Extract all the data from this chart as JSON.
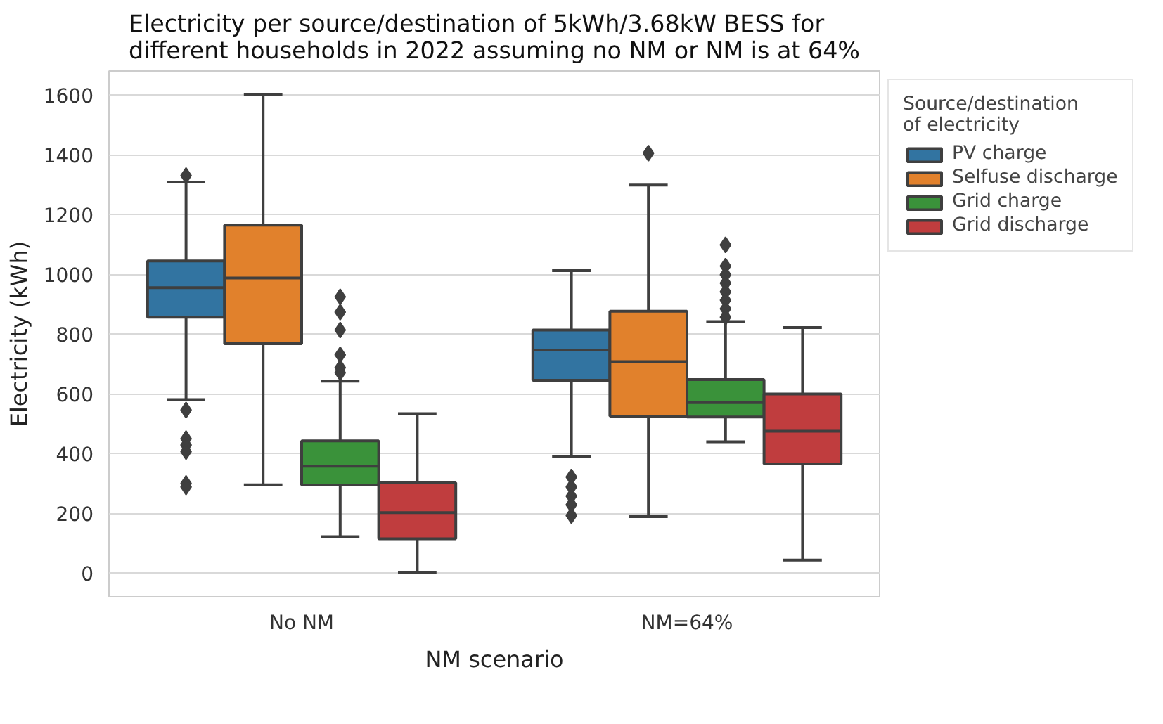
{
  "chart_data": {
    "type": "box",
    "title": "Electricity per source/destination of 5kWh/3.68kW BESS for\ndifferent households in 2022 assuming no NM or NM is at 64%",
    "xlabel": "NM scenario",
    "ylabel": "Electricity (kWh)",
    "legend_title": "Source/destination\nof electricity",
    "categories": [
      "No NM",
      "NM=64%"
    ],
    "ylim": [
      -80,
      1680
    ],
    "yticks": [
      0,
      200,
      400,
      600,
      800,
      1000,
      1200,
      1400,
      1600
    ],
    "grid": "y",
    "legend": "top right",
    "marker": "diamond",
    "series": [
      {
        "name": "PV charge",
        "color": "#3274a1",
        "boxes": [
          {
            "low": 580,
            "q1": 856,
            "median": 955,
            "q3": 1044,
            "high": 1308,
            "outliers": [
              1330,
              545,
              449,
              428,
              406,
              299,
              288
            ]
          },
          {
            "low": 389,
            "q1": 645,
            "median": 746,
            "q3": 813,
            "high": 1012,
            "outliers": [
              321,
              288,
              257,
              228,
              192
            ]
          }
        ]
      },
      {
        "name": "Selfuse discharge",
        "color": "#e1812c",
        "boxes": [
          {
            "low": 295,
            "q1": 767,
            "median": 987,
            "q3": 1164,
            "high": 1600
          },
          {
            "low": 188,
            "q1": 525,
            "median": 707,
            "q3": 876,
            "high": 1298,
            "outliers": [
              1405
            ]
          }
        ]
      },
      {
        "name": "Grid charge",
        "color": "#3a923a",
        "boxes": [
          {
            "low": 121,
            "q1": 294,
            "median": 357,
            "q3": 442,
            "high": 642,
            "outliers": [
              924,
              873,
              813,
              730,
              687,
              670
            ]
          },
          {
            "low": 439,
            "q1": 522,
            "median": 570,
            "q3": 647,
            "high": 841,
            "outliers": [
              1098,
              1027,
              998,
              970,
              941,
              913,
              884,
              856
            ]
          }
        ]
      },
      {
        "name": "Grid discharge",
        "color": "#c03d3e",
        "boxes": [
          {
            "low": 0,
            "q1": 114,
            "median": 202,
            "q3": 302,
            "high": 533
          },
          {
            "low": 43,
            "q1": 365,
            "median": 474,
            "q3": 599,
            "high": 821
          }
        ]
      }
    ]
  }
}
